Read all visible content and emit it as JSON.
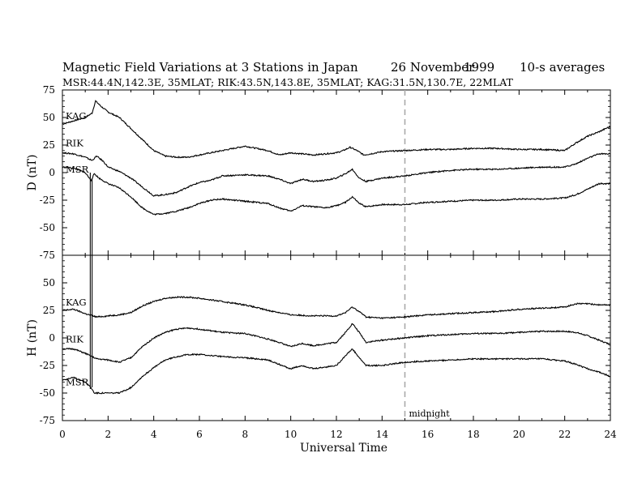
{
  "title": {
    "main": "Magnetic Field Variations at 3 Stations in Japan",
    "date": "26 November",
    "year": "1999",
    "averaging": "10-s averages"
  },
  "subtitle": "MSR:44.4N,142.3E, 35MLAT;  RIK:43.5N,143.8E, 35MLAT;  KAG:31.5N,130.7E, 22MLAT",
  "chart_data": [
    {
      "type": "line",
      "panel": "top",
      "ylabel": "D (nT)",
      "xlim": [
        0,
        24
      ],
      "ylim": [
        -75,
        75
      ],
      "yticks": [
        75,
        50,
        25,
        0,
        -25,
        -50,
        -75
      ],
      "ytick_labels": [
        "75",
        "50",
        "25",
        "0",
        "-25",
        "-50",
        "-75"
      ],
      "annotations": [
        "midnight"
      ],
      "series": [
        {
          "name": "KAG",
          "x": [
            0,
            0.5,
            1.0,
            1.3,
            1.45,
            1.7,
            2.0,
            2.5,
            3.0,
            3.5,
            4.0,
            4.5,
            5.0,
            5.5,
            6.0,
            7.0,
            8.0,
            9.0,
            9.5,
            10.0,
            10.5,
            11.0,
            11.5,
            12.0,
            12.3,
            12.6,
            12.9,
            13.2,
            13.5,
            14.0,
            15.0,
            16.0,
            17.0,
            18.0,
            19.0,
            20.0,
            21.0,
            22.0,
            22.5,
            23.0,
            23.5,
            24.0
          ],
          "y": [
            44,
            47,
            50,
            54,
            65,
            60,
            55,
            50,
            40,
            30,
            20,
            15,
            14,
            14,
            16,
            20,
            24,
            20,
            16,
            18,
            17,
            16,
            17,
            18,
            20,
            23,
            20,
            16,
            17,
            19,
            20,
            21,
            21,
            22,
            22,
            21,
            21,
            20,
            27,
            33,
            37,
            42
          ]
        },
        {
          "name": "RIK",
          "x": [
            0,
            0.5,
            1.0,
            1.3,
            1.5,
            1.8,
            2.0,
            2.5,
            3.0,
            3.5,
            4.0,
            4.5,
            5.0,
            5.5,
            6.0,
            6.5,
            7.0,
            8.0,
            9.0,
            9.5,
            10.0,
            10.5,
            11.0,
            11.5,
            12.0,
            12.4,
            12.7,
            13.0,
            13.3,
            14.0,
            15.0,
            16.0,
            17.0,
            18.0,
            19.0,
            20.0,
            21.0,
            22.0,
            22.5,
            23.0,
            23.5,
            24.0
          ],
          "y": [
            18,
            17,
            14,
            11,
            15,
            10,
            5,
            1,
            -5,
            -13,
            -21,
            -20,
            -18,
            -13,
            -9,
            -7,
            -3,
            -2,
            -3,
            -6,
            -10,
            -6,
            -8,
            -7,
            -5,
            -1,
            3,
            -5,
            -8,
            -5,
            -3,
            0,
            2,
            3,
            3,
            4,
            5,
            5,
            8,
            13,
            17,
            17
          ]
        },
        {
          "name": "MSR",
          "x": [
            0,
            0.5,
            1.0,
            1.25,
            1.4,
            1.6,
            2.0,
            2.5,
            3.0,
            3.5,
            4.0,
            4.5,
            5.0,
            5.5,
            6.0,
            6.5,
            7.0,
            8.0,
            9.0,
            9.5,
            10.0,
            10.5,
            11.0,
            11.5,
            12.0,
            12.4,
            12.7,
            13.0,
            13.3,
            14.0,
            15.0,
            16.0,
            17.0,
            18.0,
            19.0,
            20.0,
            21.0,
            22.0,
            22.5,
            23.0,
            23.5,
            24.0
          ],
          "y": [
            5,
            4,
            0,
            -7,
            -1,
            -5,
            -10,
            -14,
            -22,
            -32,
            -38,
            -37,
            -35,
            -32,
            -28,
            -25,
            -24,
            -26,
            -28,
            -32,
            -35,
            -30,
            -31,
            -32,
            -30,
            -27,
            -22,
            -28,
            -31,
            -29,
            -29,
            -27,
            -26,
            -25,
            -25,
            -24,
            -24,
            -23,
            -20,
            -15,
            -10,
            -10
          ]
        }
      ]
    },
    {
      "type": "line",
      "panel": "bottom",
      "ylabel": "H (nT)",
      "xlabel": "Universal Time",
      "xlim": [
        0,
        24
      ],
      "ylim": [
        -75,
        75
      ],
      "xticks": [
        0,
        2,
        4,
        6,
        8,
        10,
        12,
        14,
        16,
        18,
        20,
        22,
        24
      ],
      "xtick_labels": [
        "0",
        "2",
        "4",
        "6",
        "8",
        "10",
        "12",
        "14",
        "16",
        "18",
        "20",
        "22",
        "24"
      ],
      "yticks": [
        75,
        50,
        25,
        0,
        -25,
        -50,
        -75
      ],
      "ytick_labels": [
        "75",
        "50",
        "25",
        "0",
        "-25",
        "-50",
        "-75"
      ],
      "series": [
        {
          "name": "KAG",
          "x": [
            0,
            0.5,
            1.0,
            1.5,
            2.0,
            2.5,
            3.0,
            3.5,
            4.0,
            4.5,
            5.0,
            5.5,
            6.0,
            7.0,
            8.0,
            9.0,
            10.0,
            11.0,
            12.0,
            12.4,
            12.7,
            13.0,
            13.3,
            14.0,
            15.0,
            16.0,
            17.0,
            18.0,
            19.0,
            20.0,
            21.0,
            22.0,
            22.5,
            23.0,
            23.5,
            24.0
          ],
          "y": [
            25,
            26,
            22,
            19,
            20,
            21,
            23,
            29,
            33,
            36,
            37,
            37,
            36,
            33,
            30,
            25,
            21,
            20,
            20,
            23,
            28,
            24,
            19,
            18,
            19,
            21,
            22,
            23,
            24,
            26,
            27,
            28,
            31,
            31,
            30,
            30
          ]
        },
        {
          "name": "RIK",
          "x": [
            0,
            0.5,
            1.0,
            1.5,
            2.0,
            2.5,
            3.0,
            3.5,
            4.0,
            4.5,
            5.0,
            5.5,
            6.0,
            7.0,
            8.0,
            9.0,
            9.5,
            10.0,
            10.5,
            11.0,
            12.0,
            12.4,
            12.7,
            13.0,
            13.3,
            14.0,
            15.0,
            16.0,
            17.0,
            18.0,
            19.0,
            20.0,
            21.0,
            22.0,
            22.5,
            23.0,
            23.5,
            24.0
          ],
          "y": [
            -10,
            -10,
            -14,
            -19,
            -20,
            -22,
            -18,
            -8,
            0,
            5,
            8,
            9,
            8,
            5,
            4,
            -1,
            -4,
            -8,
            -5,
            -7,
            -4,
            5,
            13,
            5,
            -4,
            -2,
            0,
            2,
            3,
            4,
            4,
            5,
            6,
            6,
            5,
            2,
            -2,
            -6
          ]
        },
        {
          "name": "MSR",
          "x": [
            0,
            0.5,
            1.0,
            1.25,
            1.4,
            2.0,
            2.5,
            3.0,
            3.5,
            4.0,
            4.5,
            5.0,
            5.5,
            6.0,
            7.0,
            8.0,
            9.0,
            9.5,
            10.0,
            10.5,
            11.0,
            12.0,
            12.4,
            12.7,
            13.0,
            13.3,
            14.0,
            15.0,
            16.0,
            17.0,
            18.0,
            19.0,
            20.0,
            21.0,
            22.0,
            22.5,
            23.0,
            23.5,
            24.0
          ],
          "y": [
            -38,
            -36,
            -40,
            -45,
            -50,
            -50,
            -50,
            -45,
            -35,
            -27,
            -20,
            -17,
            -15,
            -15,
            -17,
            -18,
            -20,
            -24,
            -28,
            -25,
            -28,
            -25,
            -16,
            -10,
            -18,
            -25,
            -25,
            -22,
            -21,
            -20,
            -19,
            -19,
            -19,
            -19,
            -21,
            -24,
            -28,
            -31,
            -35
          ]
        }
      ]
    }
  ]
}
